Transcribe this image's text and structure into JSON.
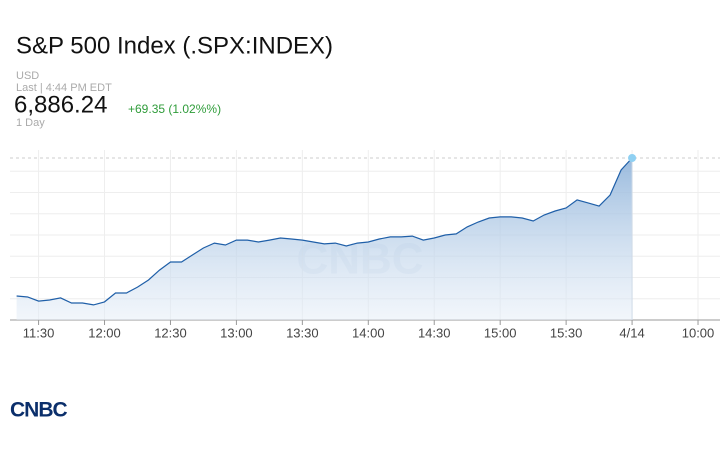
{
  "header": {
    "title": "S&P 500 Index (.SPX:INDEX)",
    "currency": "USD",
    "last": "Last | 4:44 PM EDT",
    "price": "6,886.24",
    "change": "+69.35 (1.02%%)",
    "range": "1 Day"
  },
  "chart_data": {
    "type": "line",
    "watermark": "CNBC",
    "color": "#1f5fa8",
    "x": [
      680,
      685,
      690,
      695,
      700,
      705,
      710,
      715,
      720,
      725,
      730,
      735,
      740,
      745,
      750,
      755,
      760,
      765,
      770,
      775,
      780,
      785,
      790,
      795,
      800,
      805,
      810,
      815,
      820,
      825,
      830,
      835,
      840,
      845,
      850,
      855,
      860,
      865,
      870,
      875,
      880,
      885,
      890,
      895,
      900,
      905,
      910,
      915,
      920,
      925,
      930,
      935,
      940,
      945,
      950,
      955,
      960
    ],
    "values": [
      6821.3,
      6820.8,
      6818.9,
      6819.4,
      6820.4,
      6818.0,
      6818.0,
      6817.1,
      6818.5,
      6822.7,
      6822.7,
      6825.5,
      6828.8,
      6833.5,
      6837.3,
      6837.3,
      6840.6,
      6843.9,
      6846.2,
      6845.3,
      6847.6,
      6847.6,
      6846.7,
      6847.6,
      6848.6,
      6848.1,
      6847.6,
      6846.7,
      6845.8,
      6846.2,
      6844.8,
      6846.2,
      6846.7,
      6848.1,
      6849.1,
      6849.1,
      6849.5,
      6847.6,
      6848.6,
      6850.0,
      6850.5,
      6853.8,
      6856.1,
      6858.0,
      6858.5,
      6858.5,
      6858.0,
      6856.6,
      6859.4,
      6861.3,
      6862.7,
      6866.5,
      6865.1,
      6863.6,
      6868.8,
      6880.6,
      6886.24
    ],
    "xlim": [
      677,
      1000
    ],
    "xticks": [
      {
        "value": 690,
        "label": "11:30"
      },
      {
        "value": 720,
        "label": "12:00"
      },
      {
        "value": 750,
        "label": "12:30"
      },
      {
        "value": 780,
        "label": "13:00"
      },
      {
        "value": 810,
        "label": "13:30"
      },
      {
        "value": 840,
        "label": "14:00"
      },
      {
        "value": 870,
        "label": "14:30"
      },
      {
        "value": 900,
        "label": "15:00"
      },
      {
        "value": 930,
        "label": "15:30"
      },
      {
        "value": 960,
        "label": "4/14"
      },
      {
        "value": 990,
        "label": "10:00"
      }
    ],
    "ylim": [
      6810,
      6890
    ],
    "yticks": [
      6820,
      6830,
      6840,
      6850,
      6860,
      6870,
      6880
    ],
    "grid": true
  },
  "logo": "CNBC"
}
